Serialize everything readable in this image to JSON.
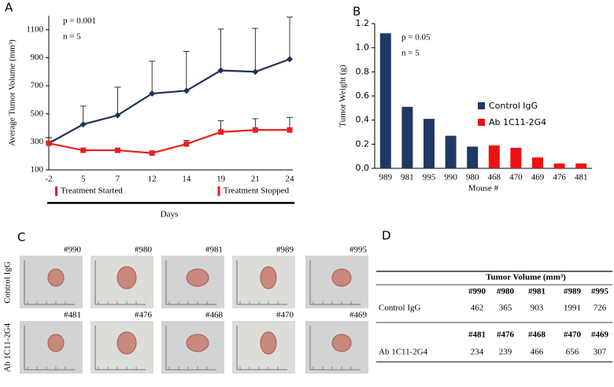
{
  "panel_labels": [
    "A",
    "B",
    "C",
    "D"
  ],
  "chart_data": [
    {
      "type": "line",
      "y_label": "Average Tumor Volume (mm³)",
      "x_label": "Days",
      "annotations": [
        "p = 0.001",
        "n = 5"
      ],
      "treatment_labels": [
        "Treatment Started",
        "Treatment Stopped"
      ],
      "categories": [
        "-2",
        "5",
        "7",
        "12",
        "14",
        "19",
        "21",
        "24"
      ],
      "ylim": [
        100,
        1200
      ],
      "yticks": [
        100,
        300,
        500,
        700,
        900,
        1100
      ],
      "series": [
        {
          "color": "#1f3355",
          "marker": "diamond",
          "values": [
            290,
            425,
            490,
            645,
            665,
            810,
            800,
            890
          ],
          "errors": [
            40,
            130,
            200,
            230,
            280,
            295,
            310,
            300
          ]
        },
        {
          "color": "#e8201f",
          "marker": "square",
          "values": [
            290,
            240,
            240,
            220,
            285,
            370,
            385,
            385
          ],
          "errors": [
            40,
            null,
            null,
            null,
            25,
            80,
            80,
            90
          ]
        }
      ]
    },
    {
      "type": "bar",
      "y_label": "Tumor Weight (g)",
      "x_label": "Mouse #",
      "annotations": [
        "p = 0.05",
        "n = 5"
      ],
      "categories": [
        "989",
        "981",
        "995",
        "990",
        "980",
        "468",
        "470",
        "469",
        "476",
        "481"
      ],
      "ylim": [
        0,
        1.2
      ],
      "yticks": [
        {
          "value": 0,
          "label": "0.0"
        },
        0.2,
        0.4,
        0.6,
        0.8,
        {
          "value": 1,
          "label": "1.0"
        },
        1.2
      ],
      "series": [
        {
          "name": "Control IgG",
          "color": "#1f3864",
          "values": [
            1.12,
            0.51,
            0.41,
            0.27,
            0.18,
            null,
            null,
            null,
            null,
            null
          ]
        },
        {
          "name": "Ab 1C11-2G4",
          "color": "#ee1111",
          "values": [
            null,
            null,
            null,
            null,
            null,
            0.19,
            0.17,
            0.09,
            0.04,
            0.04
          ]
        }
      ]
    }
  ],
  "photos": {
    "rows": [
      {
        "label": "Control IgG",
        "ids": [
          "#990",
          "#980",
          "#981",
          "#989",
          "#995"
        ]
      },
      {
        "label": "Ab 1C11-2G4",
        "ids": [
          "#481",
          "#476",
          "#468",
          "#470",
          "#469"
        ]
      }
    ]
  },
  "table": {
    "title": "Tumor Volume (mm³)",
    "rows": [
      {
        "label": "Control IgG",
        "ids": [
          "#990",
          "#980",
          "#981",
          "#989",
          "#995"
        ],
        "values": [
          462,
          365,
          903,
          1991,
          726
        ]
      },
      {
        "label": "Ab 1C11-2G4",
        "ids": [
          "#481",
          "#476",
          "#468",
          "#470",
          "#469"
        ],
        "values": [
          234,
          239,
          466,
          656,
          307
        ]
      }
    ]
  }
}
